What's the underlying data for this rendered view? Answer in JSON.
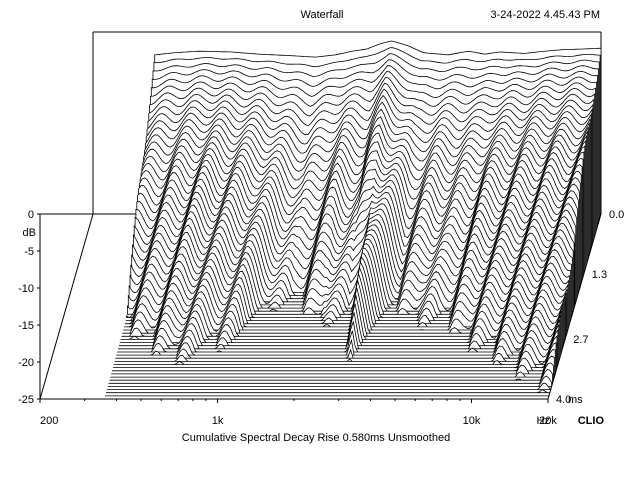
{
  "header": {
    "title": "Waterfall",
    "timestamp": "3-24-2022 4.45.43 PM"
  },
  "footer": {
    "caption": "Cumulative Spectral Decay   Rise 0.580ms   Unsmoothed",
    "brand": "CLIO"
  },
  "chart_data": {
    "type": "waterfall",
    "title": "Waterfall",
    "xlabel": "Hz",
    "ylabel": "dB",
    "zlabel": "ms",
    "x_scale": "log",
    "xlim": [
      200,
      20000
    ],
    "ylim": [
      -25,
      0
    ],
    "zlim": [
      0.0,
      4.0
    ],
    "x_tick_labels": [
      "200",
      "1k",
      "10k",
      "20k"
    ],
    "y_tick_labels": [
      "0",
      "-5",
      "-10",
      "-15",
      "-20",
      "-25"
    ],
    "z_tick_labels": [
      "0.0",
      "1.3",
      "2.7",
      "4.0"
    ],
    "slice_count": 60,
    "first_slice_freq_start": 350,
    "response_profile": {
      "freq": [
        350,
        420,
        520,
        700,
        900,
        1200,
        1500,
        1800,
        2100,
        2400,
        2700,
        3000,
        3500,
        4000,
        5000,
        6000,
        7000,
        8000,
        10000,
        12000,
        14000,
        17000,
        20000
      ],
      "level_db": [
        -3.5,
        -3.2,
        -3.0,
        -3.1,
        -3.4,
        -3.6,
        -3.8,
        -3.5,
        -3.0,
        -2.7,
        -2.0,
        -1.6,
        -2.3,
        -3.2,
        -3.5,
        -3.0,
        -3.4,
        -3.1,
        -3.3,
        -3.0,
        -2.8,
        -2.7,
        -2.6
      ]
    },
    "decay_db_per_ms": {
      "freq": [
        350,
        600,
        1000,
        1500,
        2100,
        2600,
        3000,
        4000,
        5000,
        6000,
        8000,
        12000,
        20000
      ],
      "rate": [
        9,
        7,
        8,
        12,
        9,
        11,
        7,
        11,
        9,
        10,
        8,
        7,
        6
      ]
    }
  }
}
